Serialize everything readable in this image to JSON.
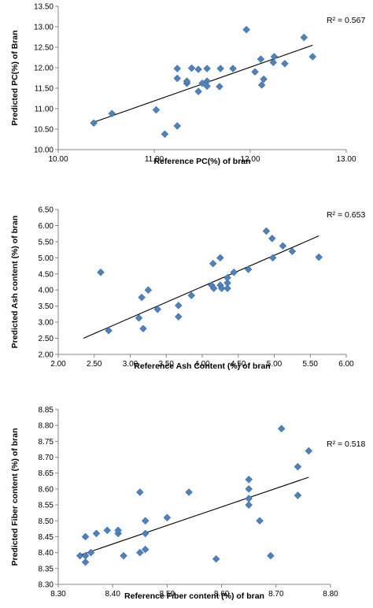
{
  "chart_data": [
    {
      "type": "scatter",
      "title": "",
      "xlabel": "Reference PC(%) of bran",
      "ylabel": "Predicted PC(%) of Bran",
      "xlim": [
        10.0,
        13.0
      ],
      "ylim": [
        10.0,
        13.5
      ],
      "xticks": [
        10.0,
        11.0,
        12.0,
        13.0
      ],
      "yticks": [
        10.0,
        10.5,
        11.0,
        11.5,
        12.0,
        12.5,
        13.0,
        13.5
      ],
      "x_tick_labels": [
        "10.00",
        "11.00",
        "12.00",
        "13.00"
      ],
      "y_tick_labels": [
        "10.00",
        "10.50",
        "11.00",
        "11.50",
        "12.00",
        "12.50",
        "13.00",
        "13.50"
      ],
      "r2_label": "R² = 0.567",
      "marker": "diamond",
      "marker_color": "#4F81BD",
      "trendline": {
        "x": [
          10.37,
          12.65
        ],
        "y": [
          10.67,
          12.55
        ]
      },
      "points": [
        {
          "x": 10.37,
          "y": 10.65
        },
        {
          "x": 10.56,
          "y": 10.88
        },
        {
          "x": 11.02,
          "y": 10.97
        },
        {
          "x": 11.11,
          "y": 10.38
        },
        {
          "x": 11.24,
          "y": 10.58
        },
        {
          "x": 11.24,
          "y": 11.74
        },
        {
          "x": 11.24,
          "y": 11.98
        },
        {
          "x": 11.34,
          "y": 11.62
        },
        {
          "x": 11.34,
          "y": 11.67
        },
        {
          "x": 11.39,
          "y": 11.99
        },
        {
          "x": 11.46,
          "y": 11.42
        },
        {
          "x": 11.46,
          "y": 11.96
        },
        {
          "x": 11.5,
          "y": 11.62
        },
        {
          "x": 11.55,
          "y": 11.67
        },
        {
          "x": 11.55,
          "y": 11.55
        },
        {
          "x": 11.55,
          "y": 11.98
        },
        {
          "x": 11.68,
          "y": 11.54
        },
        {
          "x": 11.69,
          "y": 11.98
        },
        {
          "x": 11.82,
          "y": 11.98
        },
        {
          "x": 11.96,
          "y": 12.93
        },
        {
          "x": 12.05,
          "y": 11.9
        },
        {
          "x": 12.11,
          "y": 12.21
        },
        {
          "x": 12.12,
          "y": 11.58
        },
        {
          "x": 12.14,
          "y": 11.72
        },
        {
          "x": 12.24,
          "y": 12.13
        },
        {
          "x": 12.25,
          "y": 12.27
        },
        {
          "x": 12.36,
          "y": 12.1
        },
        {
          "x": 12.56,
          "y": 12.74
        },
        {
          "x": 12.65,
          "y": 12.27
        }
      ]
    },
    {
      "type": "scatter",
      "title": "",
      "xlabel": "Reference Ash Content (%) of bran",
      "ylabel": "Predicted Ash content (%) of bran",
      "xlim": [
        2.0,
        6.0
      ],
      "ylim": [
        2.0,
        6.5
      ],
      "xticks": [
        2.0,
        2.5,
        3.0,
        3.5,
        4.0,
        4.5,
        5.0,
        5.5,
        6.0
      ],
      "yticks": [
        2.0,
        2.5,
        3.0,
        3.5,
        4.0,
        4.5,
        5.0,
        5.5,
        6.0,
        6.5
      ],
      "x_tick_labels": [
        "2.00",
        "2.50",
        "3.00",
        "3.50",
        "4.00",
        "4.50",
        "5.00",
        "5.50",
        "6.00"
      ],
      "y_tick_labels": [
        "2.00",
        "2.50",
        "3.00",
        "3.50",
        "4.00",
        "4.50",
        "5.00",
        "5.50",
        "6.00",
        "6.50"
      ],
      "r2_label": "R² = 0.653",
      "marker": "diamond",
      "marker_color": "#4F81BD",
      "trendline": {
        "x": [
          2.35,
          5.62
        ],
        "y": [
          2.5,
          5.68
        ]
      },
      "points": [
        {
          "x": 2.59,
          "y": 4.55
        },
        {
          "x": 2.7,
          "y": 2.74
        },
        {
          "x": 3.12,
          "y": 3.13
        },
        {
          "x": 3.16,
          "y": 3.77
        },
        {
          "x": 3.18,
          "y": 2.8
        },
        {
          "x": 3.25,
          "y": 4.0
        },
        {
          "x": 3.38,
          "y": 3.4
        },
        {
          "x": 3.67,
          "y": 3.52
        },
        {
          "x": 3.67,
          "y": 3.17
        },
        {
          "x": 3.85,
          "y": 3.83
        },
        {
          "x": 4.13,
          "y": 4.15
        },
        {
          "x": 4.15,
          "y": 4.82
        },
        {
          "x": 4.16,
          "y": 4.05
        },
        {
          "x": 4.25,
          "y": 5.0
        },
        {
          "x": 4.25,
          "y": 4.15
        },
        {
          "x": 4.27,
          "y": 4.05
        },
        {
          "x": 4.35,
          "y": 4.22
        },
        {
          "x": 4.35,
          "y": 4.38
        },
        {
          "x": 4.35,
          "y": 4.05
        },
        {
          "x": 4.44,
          "y": 4.55
        },
        {
          "x": 4.64,
          "y": 4.64
        },
        {
          "x": 4.89,
          "y": 5.83
        },
        {
          "x": 4.97,
          "y": 5.6
        },
        {
          "x": 4.98,
          "y": 5.0
        },
        {
          "x": 5.12,
          "y": 5.37
        },
        {
          "x": 5.25,
          "y": 5.2
        },
        {
          "x": 5.62,
          "y": 5.02
        }
      ]
    },
    {
      "type": "scatter",
      "title": "",
      "xlabel": "Reference Fiber content (%) of bran",
      "ylabel": "Predicted Fiber content (%) of bran",
      "xlim": [
        8.3,
        8.8
      ],
      "ylim": [
        8.3,
        8.85
      ],
      "xticks": [
        8.3,
        8.4,
        8.5,
        8.6,
        8.7,
        8.8
      ],
      "yticks": [
        8.3,
        8.35,
        8.4,
        8.45,
        8.5,
        8.55,
        8.6,
        8.65,
        8.7,
        8.75,
        8.8,
        8.85
      ],
      "x_tick_labels": [
        "8.30",
        "8.40",
        "8.50",
        "8.60",
        "8.70",
        "8.80"
      ],
      "y_tick_labels": [
        "8.30",
        "8.35",
        "8.40",
        "8.45",
        "8.50",
        "8.55",
        "8.60",
        "8.65",
        "8.70",
        "8.75",
        "8.80",
        "8.85"
      ],
      "r2_label": "R² = 0.518",
      "marker": "diamond",
      "marker_color": "#4F81BD",
      "trendline": {
        "x": [
          8.34,
          8.76
        ],
        "y": [
          8.392,
          8.637
        ]
      },
      "points": [
        {
          "x": 8.34,
          "y": 8.39
        },
        {
          "x": 8.35,
          "y": 8.37
        },
        {
          "x": 8.35,
          "y": 8.39
        },
        {
          "x": 8.35,
          "y": 8.45
        },
        {
          "x": 8.36,
          "y": 8.4
        },
        {
          "x": 8.37,
          "y": 8.46
        },
        {
          "x": 8.39,
          "y": 8.47
        },
        {
          "x": 8.41,
          "y": 8.46
        },
        {
          "x": 8.41,
          "y": 8.47
        },
        {
          "x": 8.42,
          "y": 8.39
        },
        {
          "x": 8.45,
          "y": 8.4
        },
        {
          "x": 8.45,
          "y": 8.59
        },
        {
          "x": 8.46,
          "y": 8.41
        },
        {
          "x": 8.46,
          "y": 8.46
        },
        {
          "x": 8.46,
          "y": 8.5
        },
        {
          "x": 8.5,
          "y": 8.51
        },
        {
          "x": 8.54,
          "y": 8.59
        },
        {
          "x": 8.59,
          "y": 8.38
        },
        {
          "x": 8.65,
          "y": 8.55
        },
        {
          "x": 8.65,
          "y": 8.57
        },
        {
          "x": 8.65,
          "y": 8.6
        },
        {
          "x": 8.65,
          "y": 8.63
        },
        {
          "x": 8.67,
          "y": 8.5
        },
        {
          "x": 8.69,
          "y": 8.39
        },
        {
          "x": 8.71,
          "y": 8.79
        },
        {
          "x": 8.74,
          "y": 8.67
        },
        {
          "x": 8.74,
          "y": 8.58
        },
        {
          "x": 8.76,
          "y": 8.72
        }
      ]
    }
  ]
}
